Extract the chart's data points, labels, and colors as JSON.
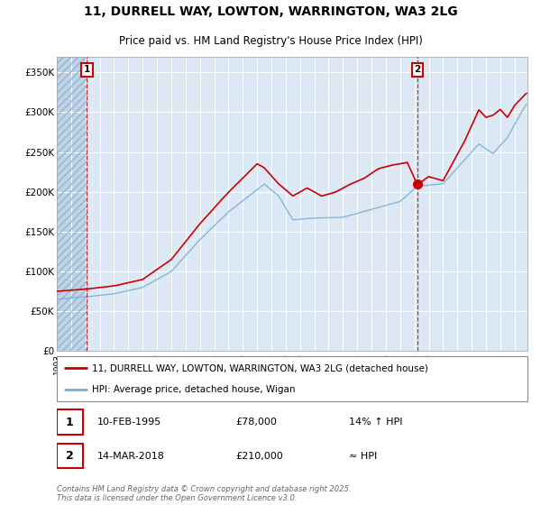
{
  "title_line1": "11, DURRELL WAY, LOWTON, WARRINGTON, WA3 2LG",
  "title_line2": "Price paid vs. HM Land Registry's House Price Index (HPI)",
  "title_fontsize": 10,
  "subtitle_fontsize": 8.5,
  "plot_bg_color": "#dce9f5",
  "hatch_color": "#c0d4e8",
  "red_line_color": "#cc0000",
  "blue_line_color": "#7ab0d4",
  "vline_color": "#cc0000",
  "ylim": [
    0,
    370000
  ],
  "yticks": [
    0,
    50000,
    100000,
    150000,
    200000,
    250000,
    300000,
    350000
  ],
  "ytick_labels": [
    "£0",
    "£50K",
    "£100K",
    "£150K",
    "£200K",
    "£250K",
    "£300K",
    "£350K"
  ],
  "xmin": 1993.0,
  "xmax": 2025.9,
  "marker1_date": 1995.1,
  "marker1_price": 78000,
  "marker1_label": "1",
  "marker2_date": 2018.2,
  "marker2_price": 210000,
  "marker2_label": "2",
  "legend_line1": "11, DURRELL WAY, LOWTON, WARRINGTON, WA3 2LG (detached house)",
  "legend_line2": "HPI: Average price, detached house, Wigan",
  "annotation1_num": "1",
  "annotation1_date": "10-FEB-1995",
  "annotation1_price": "£78,000",
  "annotation1_hpi": "14% ↑ HPI",
  "annotation2_num": "2",
  "annotation2_date": "14-MAR-2018",
  "annotation2_price": "£210,000",
  "annotation2_hpi": "≈ HPI",
  "footer": "Contains HM Land Registry data © Crown copyright and database right 2025.\nThis data is licensed under the Open Government Licence v3.0."
}
